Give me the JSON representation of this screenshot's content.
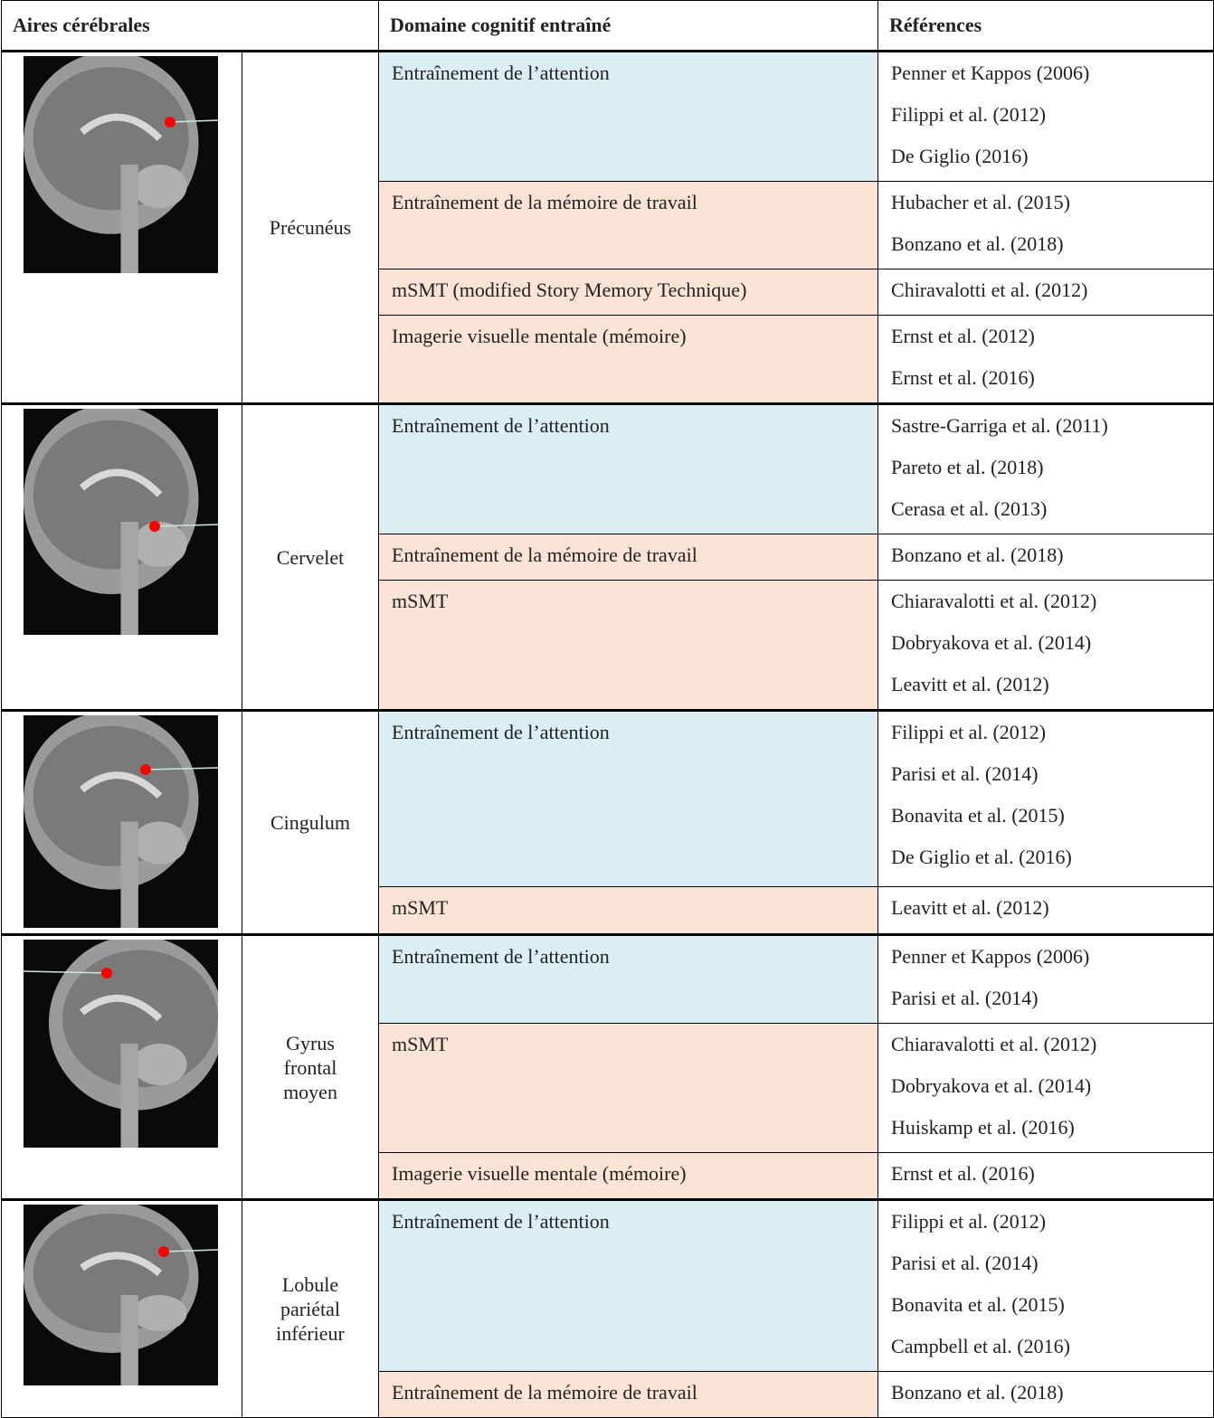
{
  "header": [
    "Aires cérébrales",
    "Domaine cognitif entraîné",
    "Références"
  ],
  "groups": [
    {
      "area": [
        "Précunéus"
      ],
      "rows": [
        {
          "domain": "Entraînement de l’attention",
          "color": "#daeef3",
          "refs": [
            "Penner et Kappos (2006)",
            "Filippi et al. (2012)",
            "De Giglio (2016)"
          ]
        },
        {
          "domain": "Entraînement de la mémoire de travail",
          "color": "#fbe4d5",
          "refs": [
            "Hubacher et al. (2015)",
            "Bonzano et al. (2018)"
          ]
        },
        {
          "domain": "mSMT (modified Story Memory Technique)",
          "color": "#fbe4d5",
          "refs": [
            "Chiravalotti et al. (2012)"
          ]
        },
        {
          "domain": "Imagerie visuelle mentale (mémoire)",
          "color": "#fbe4d5",
          "refs": [
            "Ernst et al. (2012)",
            "Ernst et al. (2016)"
          ]
        }
      ]
    },
    {
      "area": [
        "Cervelet"
      ],
      "rows": [
        {
          "domain": "Entraînement de l’attention",
          "color": "#daeef3",
          "refs": [
            "Sastre-Garriga et al. (2011)",
            "Pareto et al. (2018)",
            "Cerasa et al. (2013)"
          ]
        },
        {
          "domain": "Entraînement de la mémoire de travail",
          "color": "#fbe4d5",
          "refs": [
            "Bonzano et al. (2018)"
          ]
        },
        {
          "domain": "mSMT",
          "color": "#fbe4d5",
          "refs": [
            "Chiaravalotti et al. (2012)",
            "Dobryakova et al. (2014)",
            "Leavitt et al. (2012)"
          ]
        }
      ]
    },
    {
      "area": [
        "Cingulum"
      ],
      "rows": [
        {
          "domain": "Entraînement de l’attention",
          "color": "#daeef3",
          "refs": [
            "Filippi et al. (2012)",
            "Parisi et al. (2014)",
            "Bonavita et al. (2015)",
            "De Giglio et al. (2016)"
          ]
        },
        {
          "domain": "mSMT",
          "color": "#fbe4d5",
          "refs": [
            "Leavitt et al. (2012)"
          ]
        }
      ]
    },
    {
      "area": [
        "Gyrus",
        "frontal",
        "moyen"
      ],
      "rows": [
        {
          "domain": "Entraînement de l’attention",
          "color": "#daeef3",
          "refs": [
            "Penner et Kappos (2006)",
            "Parisi et al. (2014)"
          ]
        },
        {
          "domain": "mSMT",
          "color": "#fbe4d5",
          "refs": [
            "Chiaravalotti et al. (2012)",
            "Dobryakova et al. (2014)",
            "Huiskamp et al. (2016)"
          ]
        },
        {
          "domain": "Imagerie visuelle mentale (mémoire)",
          "color": "#fbe4d5",
          "refs": [
            "Ernst et al. (2016)"
          ]
        }
      ]
    },
    {
      "area": [
        "Lobule",
        "pariétal",
        "inférieur"
      ],
      "rows": [
        {
          "domain": "Entraînement de l’attention",
          "color": "#daeef3",
          "refs": [
            "Filippi et al. (2012)",
            "Parisi et al. (2014)",
            "Bonavita et al. (2015)",
            "Campbell et al. (2016)"
          ]
        },
        {
          "domain": "Entraînement de la mémoire de travail",
          "color": "#fbe4d5",
          "refs": [
            "Bonzano et al. (2018)"
          ]
        }
      ]
    }
  ]
}
